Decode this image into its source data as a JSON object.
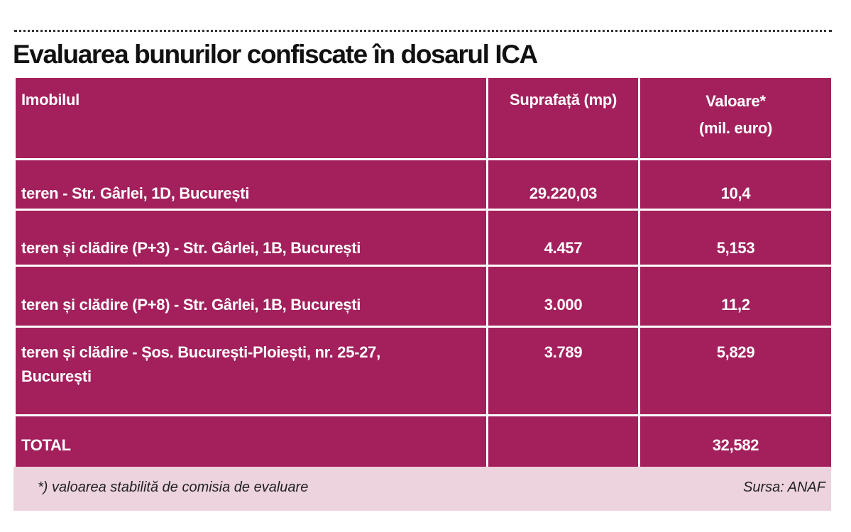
{
  "title": "Evaluarea bunurilor confiscate în dosarul ICA",
  "table": {
    "headers": [
      "Imobilul",
      "Suprafață (mp)",
      "Valoare*",
      "(mil. euro)"
    ],
    "rows": [
      [
        "teren - Str. Gârlei, 1D, București",
        "29.220,03",
        "10,4"
      ],
      [
        "teren și clădire (P+3) - Str. Gârlei, 1B, București",
        "4.457",
        "5,153"
      ],
      [
        "teren și clădire (P+8) - Str. Gârlei, 1B, București",
        "3.000",
        "11,2"
      ],
      [
        "teren și clădire - Șos. București-Ploiești, nr. 25-27,",
        "3.789",
        "5,829"
      ],
      [
        "TOTAL",
        "",
        "32,582"
      ]
    ],
    "row4_line2": "București"
  },
  "footer": {
    "note": "*) valoarea stabilită de comisia de evaluare",
    "source": "Sursa: ANAF"
  },
  "colors": {
    "cell_background": "#a3205c",
    "footer_background": "#ecd3dd"
  }
}
